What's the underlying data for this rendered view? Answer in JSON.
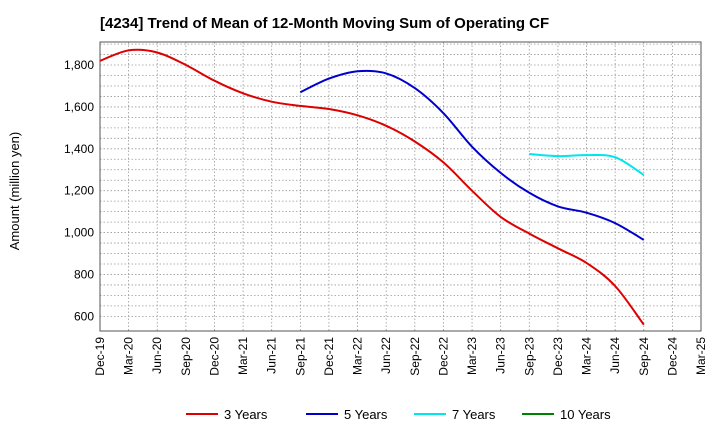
{
  "chart_data": {
    "type": "line",
    "title": "[4234]  Trend of Mean of 12-Month Moving Sum of Operating CF",
    "xlabel": "",
    "ylabel": "Amount (million yen)",
    "ylim": [
      530,
      1910
    ],
    "yticks": [
      600,
      800,
      1000,
      1200,
      1400,
      1600,
      1800
    ],
    "ytick_labels": [
      "600",
      "800",
      "1,000",
      "1,200",
      "1,400",
      "1,600",
      "1,800"
    ],
    "grid": true,
    "categories": [
      "Dec-19",
      "Mar-20",
      "Jun-20",
      "Sep-20",
      "Dec-20",
      "Mar-21",
      "Jun-21",
      "Sep-21",
      "Dec-21",
      "Mar-22",
      "Jun-22",
      "Sep-22",
      "Dec-22",
      "Mar-23",
      "Jun-23",
      "Sep-23",
      "Dec-23",
      "Mar-24",
      "Jun-24",
      "Sep-24",
      "Dec-24",
      "Mar-25"
    ],
    "series": [
      {
        "name": "3 Years",
        "color": "#dd0000",
        "values": [
          1820,
          1870,
          1860,
          1800,
          1725,
          1665,
          1625,
          1605,
          1590,
          1560,
          1510,
          1435,
          1335,
          1200,
          1075,
          995,
          925,
          855,
          745,
          560,
          null,
          null
        ]
      },
      {
        "name": "5 Years",
        "color": "#0000cc",
        "values": [
          null,
          null,
          null,
          null,
          null,
          null,
          null,
          1670,
          1735,
          1770,
          1760,
          1690,
          1570,
          1410,
          1285,
          1190,
          1125,
          1095,
          1045,
          965,
          null,
          null
        ]
      },
      {
        "name": "7 Years",
        "color": "#00e5ee",
        "values": [
          null,
          null,
          null,
          null,
          null,
          null,
          null,
          null,
          null,
          null,
          null,
          null,
          null,
          null,
          null,
          1375,
          1365,
          1370,
          1360,
          1275,
          null,
          null
        ]
      },
      {
        "name": "10 Years",
        "color": "#008000",
        "values": [
          null,
          null,
          null,
          null,
          null,
          null,
          null,
          null,
          null,
          null,
          null,
          null,
          null,
          null,
          null,
          null,
          null,
          null,
          null,
          null,
          null,
          null
        ]
      }
    ]
  }
}
